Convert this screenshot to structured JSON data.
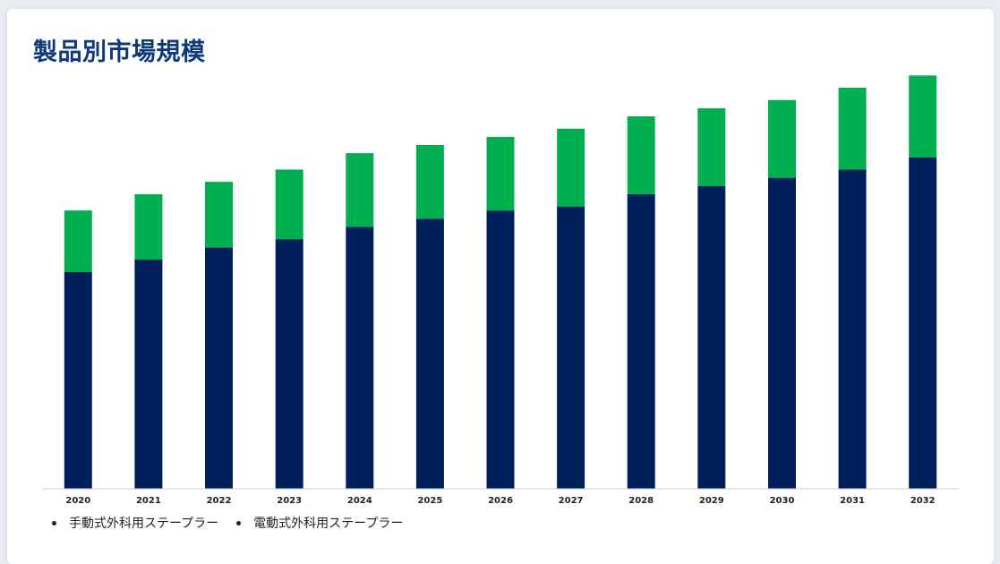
{
  "title": "製品別市場規模",
  "colors": {
    "manual": "#00205b",
    "electric": "#00b050",
    "title": "#0f3978"
  },
  "legend": [
    {
      "label": "手動式外科用ステープラー",
      "series": "manual"
    },
    {
      "label": "電動式外科用ステープラー",
      "series": "electric"
    }
  ],
  "chart_data": {
    "type": "bar",
    "stacked": true,
    "categories": [
      "2020",
      "2021",
      "2022",
      "2023",
      "2024",
      "2025",
      "2026",
      "2027",
      "2028",
      "2029",
      "2030",
      "2031",
      "2032"
    ],
    "series": [
      {
        "name": "手動式外科用ステープラー",
        "color": "#00205b",
        "values": [
          5.3,
          5.6,
          5.9,
          6.1,
          6.4,
          6.6,
          6.8,
          6.9,
          7.2,
          7.4,
          7.6,
          7.8,
          8.1
        ]
      },
      {
        "name": "電動式外科用ステープラー",
        "color": "#00b050",
        "values": [
          1.5,
          1.6,
          1.6,
          1.7,
          1.8,
          1.8,
          1.8,
          1.9,
          1.9,
          1.9,
          1.9,
          2.0,
          2.0
        ]
      }
    ],
    "ylim": [
      0,
      10.5
    ],
    "grid": false,
    "y_axis_visible": false,
    "legend_position": "bottom-left"
  }
}
